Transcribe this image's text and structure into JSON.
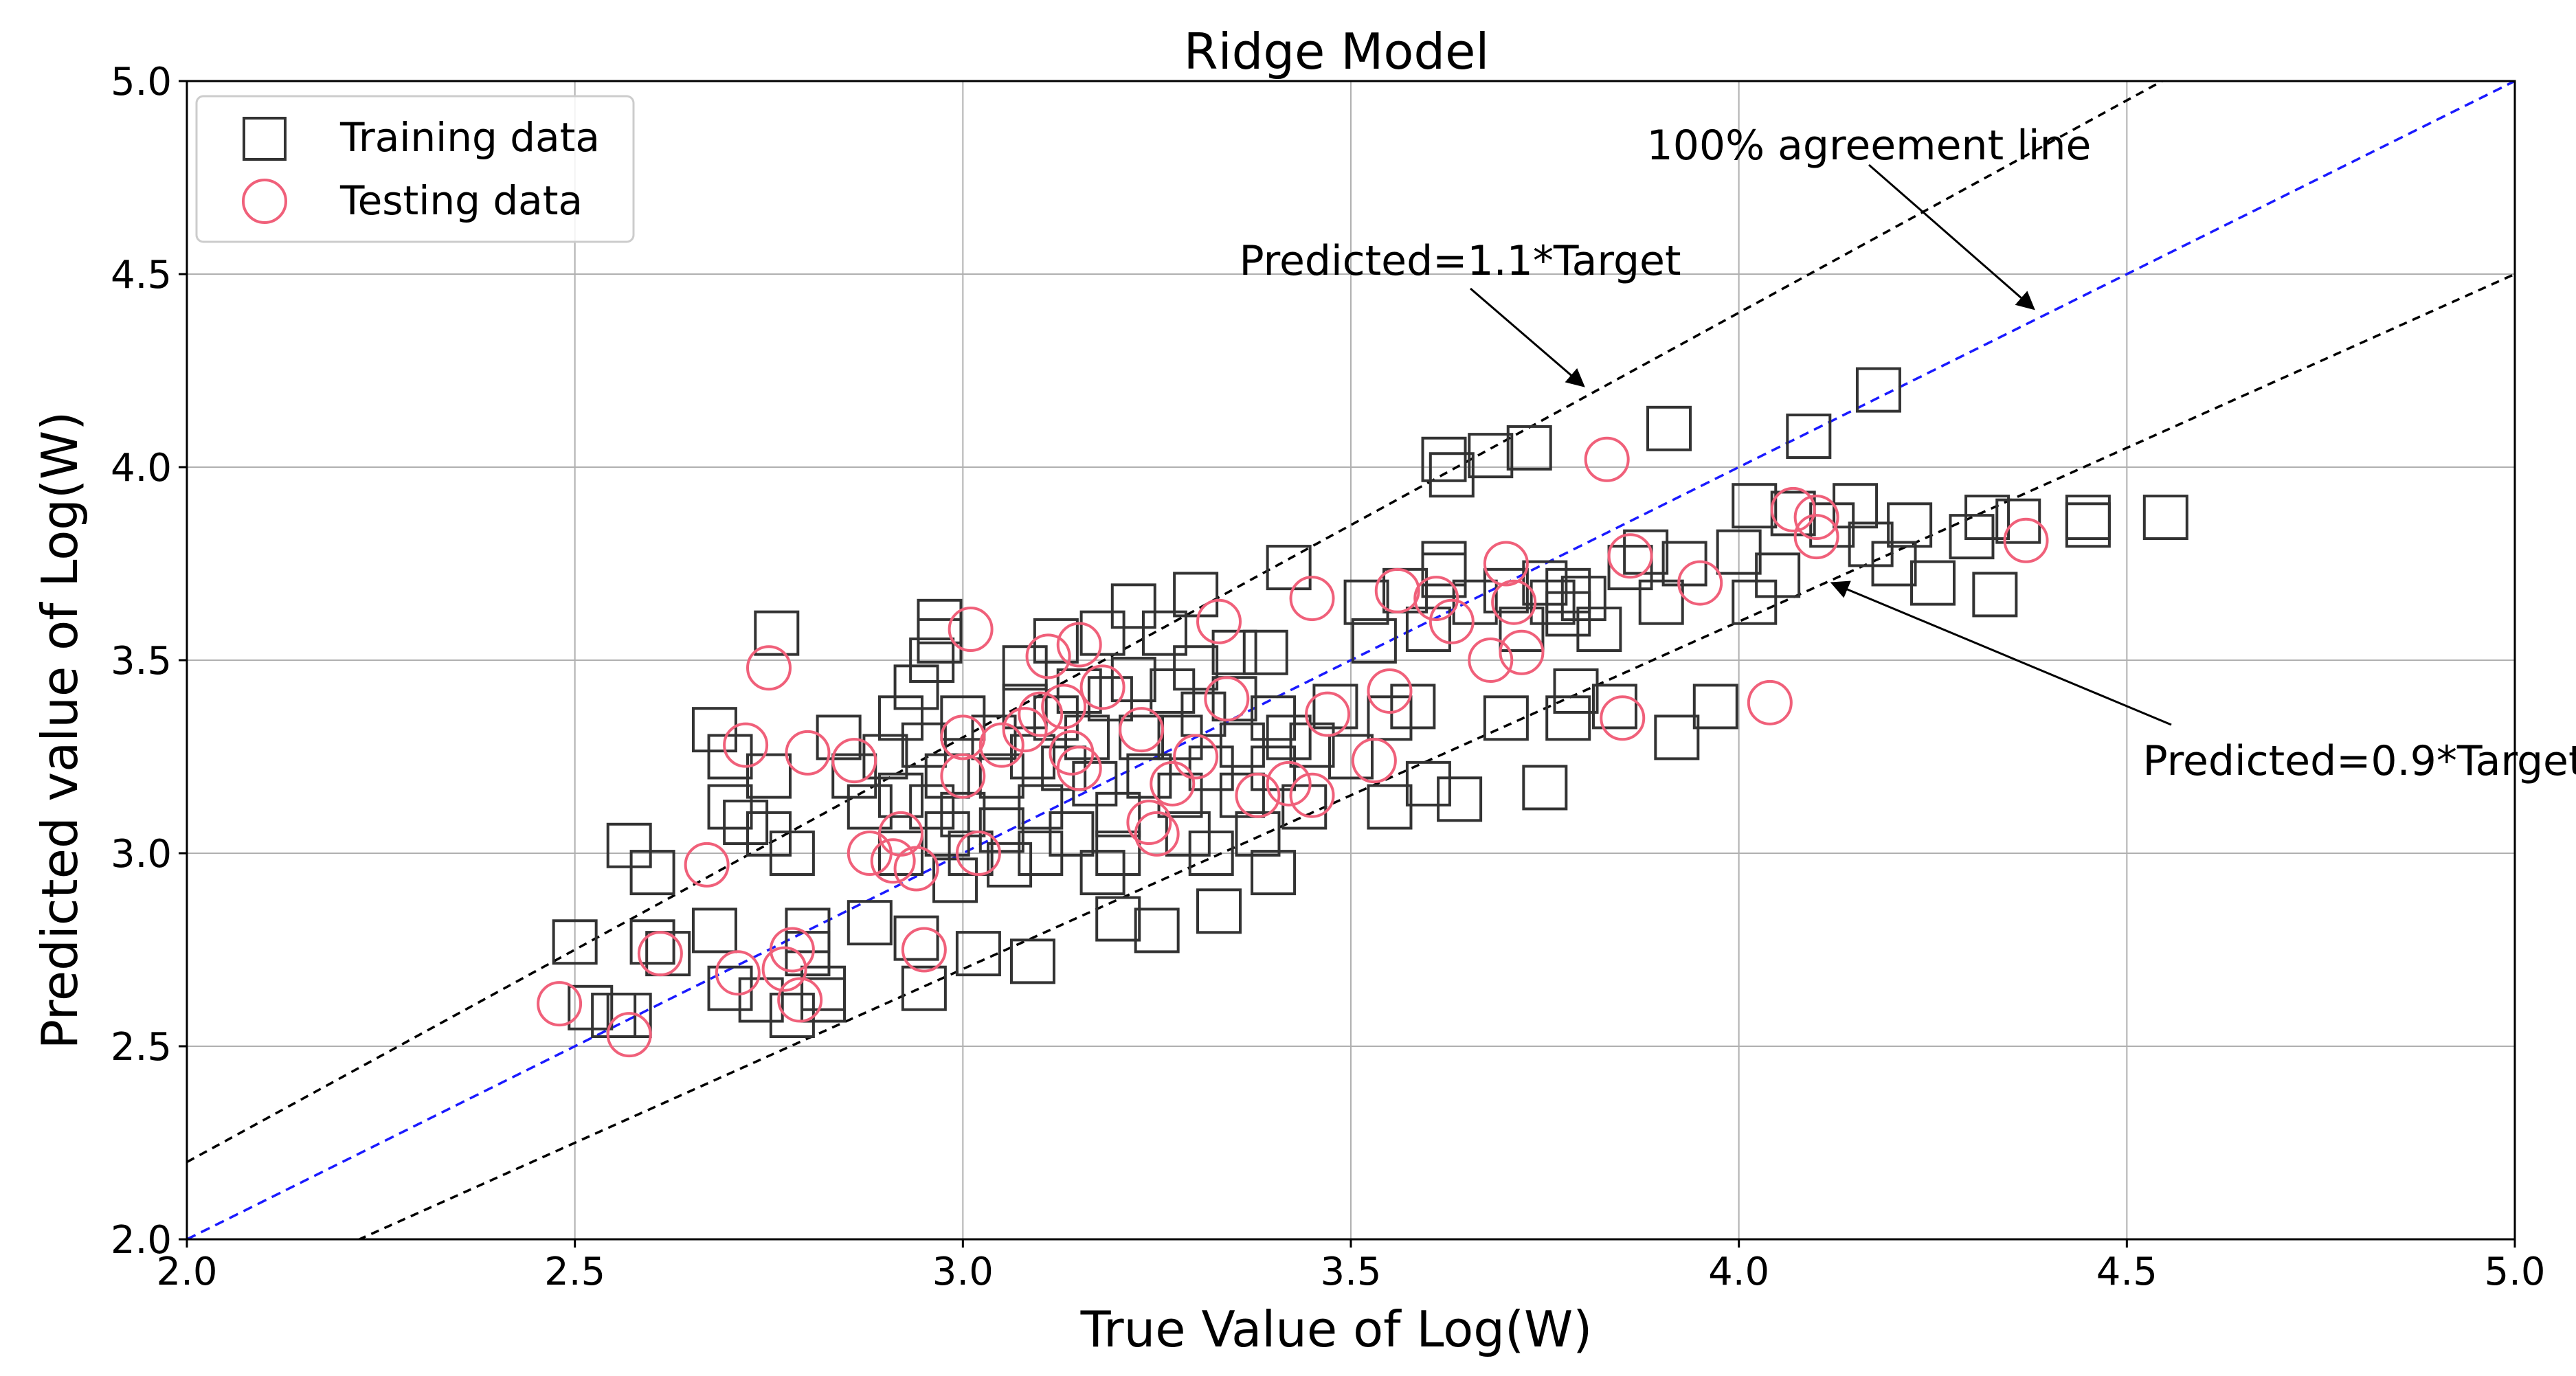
{
  "chart_data": {
    "type": "scatter",
    "title": "Ridge Model",
    "xlabel": "True Value of Log(W)",
    "ylabel": "Predicted value of Log(W)",
    "xlim": [
      2.0,
      5.0
    ],
    "ylim": [
      2.0,
      5.0
    ],
    "xticks": [
      "2.0",
      "2.5",
      "3.0",
      "3.5",
      "4.0",
      "4.5",
      "5.0"
    ],
    "yticks": [
      "2.0",
      "2.5",
      "3.0",
      "3.5",
      "4.0",
      "4.5",
      "5.0"
    ],
    "grid": true,
    "legend": {
      "position": "top-left",
      "entries": [
        "Training data",
        "Testing data"
      ]
    },
    "colors": {
      "training": "#333333",
      "testing": "#f0607a",
      "agreement_line": "#1a1aff",
      "bound_lines": "#000000"
    },
    "reference_lines": [
      {
        "name": "100% agreement line",
        "slope": 1.0,
        "style": "dashed",
        "color": "#1a1aff"
      },
      {
        "name": "Predicted=1.1*Target",
        "slope": 1.1,
        "style": "dashed",
        "color": "#000000"
      },
      {
        "name": "Predicted=0.9*Target",
        "slope": 0.9,
        "style": "dashed",
        "color": "#000000"
      }
    ],
    "annotations": [
      {
        "text": "100% agreement line",
        "points_to": [
          4.38,
          4.41
        ]
      },
      {
        "text": "Predicted=1.1*Target",
        "points_to": [
          3.8,
          4.21
        ]
      },
      {
        "text": "Predicted=0.9*Target",
        "points_to": [
          4.12,
          3.7
        ]
      }
    ],
    "series": [
      {
        "name": "Training data",
        "marker": "square",
        "points": [
          [
            2.5,
            2.77
          ],
          [
            2.52,
            2.6
          ],
          [
            2.55,
            2.58
          ],
          [
            2.57,
            3.02
          ],
          [
            2.6,
            2.95
          ],
          [
            2.6,
            2.77
          ],
          [
            2.62,
            2.74
          ],
          [
            2.57,
            2.58
          ],
          [
            2.68,
            3.32
          ],
          [
            2.7,
            3.25
          ],
          [
            2.7,
            3.12
          ],
          [
            2.72,
            3.08
          ],
          [
            2.68,
            2.8
          ],
          [
            2.7,
            2.65
          ],
          [
            2.74,
            2.62
          ],
          [
            2.78,
            2.58
          ],
          [
            2.76,
            3.57
          ],
          [
            2.75,
            3.2
          ],
          [
            2.75,
            3.05
          ],
          [
            2.78,
            3.0
          ],
          [
            2.8,
            2.74
          ],
          [
            2.8,
            2.8
          ],
          [
            2.82,
            2.62
          ],
          [
            2.82,
            2.65
          ],
          [
            2.84,
            3.3
          ],
          [
            2.86,
            3.2
          ],
          [
            2.88,
            3.12
          ],
          [
            2.88,
            2.82
          ],
          [
            2.9,
            3.25
          ],
          [
            2.92,
            3.35
          ],
          [
            2.92,
            3.15
          ],
          [
            2.92,
            3.0
          ],
          [
            2.94,
            2.78
          ],
          [
            2.95,
            2.65
          ],
          [
            2.94,
            3.43
          ],
          [
            2.97,
            3.6
          ],
          [
            2.97,
            3.55
          ],
          [
            2.96,
            3.5
          ],
          [
            2.95,
            3.28
          ],
          [
            2.96,
            3.12
          ],
          [
            2.98,
            3.2
          ],
          [
            2.98,
            3.05
          ],
          [
            2.99,
            2.93
          ],
          [
            3.0,
            3.35
          ],
          [
            3.0,
            3.1
          ],
          [
            3.01,
            3.0
          ],
          [
            3.02,
            2.74
          ],
          [
            3.04,
            3.3
          ],
          [
            3.05,
            3.2
          ],
          [
            3.05,
            3.06
          ],
          [
            3.06,
            2.97
          ],
          [
            3.08,
            3.48
          ],
          [
            3.08,
            3.38
          ],
          [
            3.09,
            3.25
          ],
          [
            3.1,
            3.12
          ],
          [
            3.1,
            3.0
          ],
          [
            3.09,
            2.72
          ],
          [
            3.12,
            3.55
          ],
          [
            3.12,
            3.35
          ],
          [
            3.13,
            3.22
          ],
          [
            3.14,
            3.05
          ],
          [
            3.15,
            3.42
          ],
          [
            3.16,
            3.3
          ],
          [
            3.17,
            3.18
          ],
          [
            3.18,
            2.95
          ],
          [
            3.18,
            3.57
          ],
          [
            3.19,
            3.4
          ],
          [
            3.2,
            3.1
          ],
          [
            3.2,
            3.0
          ],
          [
            3.22,
            3.64
          ],
          [
            3.22,
            3.45
          ],
          [
            3.23,
            3.3
          ],
          [
            3.24,
            3.2
          ],
          [
            3.2,
            2.83
          ],
          [
            3.25,
            2.8
          ],
          [
            3.26,
            3.57
          ],
          [
            3.27,
            3.42
          ],
          [
            3.28,
            3.3
          ],
          [
            3.28,
            3.15
          ],
          [
            3.29,
            3.05
          ],
          [
            3.3,
            3.67
          ],
          [
            3.3,
            3.48
          ],
          [
            3.31,
            3.36
          ],
          [
            3.32,
            3.22
          ],
          [
            3.32,
            3.0
          ],
          [
            3.33,
            2.85
          ],
          [
            3.35,
            3.52
          ],
          [
            3.35,
            3.4
          ],
          [
            3.36,
            3.28
          ],
          [
            3.36,
            3.15
          ],
          [
            3.38,
            3.05
          ],
          [
            3.39,
            3.52
          ],
          [
            3.4,
            3.35
          ],
          [
            3.4,
            3.22
          ],
          [
            3.4,
            2.95
          ],
          [
            3.42,
            3.74
          ],
          [
            3.42,
            3.3
          ],
          [
            3.44,
            3.12
          ],
          [
            3.45,
            3.28
          ],
          [
            3.48,
            3.38
          ],
          [
            3.5,
            3.25
          ],
          [
            3.52,
            3.65
          ],
          [
            3.53,
            3.55
          ],
          [
            3.55,
            3.35
          ],
          [
            3.55,
            3.12
          ],
          [
            3.57,
            3.68
          ],
          [
            3.58,
            3.38
          ],
          [
            3.6,
            3.58
          ],
          [
            3.6,
            3.18
          ],
          [
            3.62,
            3.75
          ],
          [
            3.62,
            3.72
          ],
          [
            3.62,
            4.02
          ],
          [
            3.63,
            3.98
          ],
          [
            3.64,
            3.14
          ],
          [
            3.66,
            3.65
          ],
          [
            3.68,
            4.03
          ],
          [
            3.7,
            3.68
          ],
          [
            3.7,
            3.35
          ],
          [
            3.72,
            3.58
          ],
          [
            3.73,
            4.05
          ],
          [
            3.75,
            3.7
          ],
          [
            3.76,
            3.65
          ],
          [
            3.78,
            3.68
          ],
          [
            3.78,
            3.62
          ],
          [
            3.8,
            3.66
          ],
          [
            3.79,
            3.42
          ],
          [
            3.78,
            3.35
          ],
          [
            3.75,
            3.17
          ],
          [
            3.82,
            3.58
          ],
          [
            3.84,
            3.38
          ],
          [
            3.86,
            3.74
          ],
          [
            3.88,
            3.78
          ],
          [
            3.9,
            3.65
          ],
          [
            3.91,
            4.1
          ],
          [
            3.92,
            3.3
          ],
          [
            3.93,
            3.75
          ],
          [
            3.97,
            3.38
          ],
          [
            4.0,
            3.78
          ],
          [
            4.02,
            3.65
          ],
          [
            4.02,
            3.9
          ],
          [
            4.05,
            3.72
          ],
          [
            4.07,
            3.88
          ],
          [
            4.09,
            4.08
          ],
          [
            4.12,
            3.85
          ],
          [
            4.15,
            3.9
          ],
          [
            4.17,
            3.8
          ],
          [
            4.18,
            4.2
          ],
          [
            4.2,
            3.75
          ],
          [
            4.22,
            3.85
          ],
          [
            4.25,
            3.7
          ],
          [
            4.3,
            3.82
          ],
          [
            4.32,
            3.87
          ],
          [
            4.33,
            3.67
          ],
          [
            4.36,
            3.86
          ],
          [
            4.45,
            3.85
          ],
          [
            4.45,
            3.87
          ],
          [
            4.55,
            3.87
          ]
        ]
      },
      {
        "name": "Testing data",
        "marker": "circle",
        "points": [
          [
            2.48,
            2.61
          ],
          [
            2.57,
            2.53
          ],
          [
            2.61,
            2.74
          ],
          [
            2.67,
            2.97
          ],
          [
            2.71,
            2.69
          ],
          [
            2.72,
            3.28
          ],
          [
            2.75,
            3.48
          ],
          [
            2.77,
            2.7
          ],
          [
            2.78,
            2.75
          ],
          [
            2.79,
            2.62
          ],
          [
            2.8,
            3.26
          ],
          [
            2.86,
            3.24
          ],
          [
            2.88,
            3.0
          ],
          [
            2.91,
            2.98
          ],
          [
            2.92,
            3.05
          ],
          [
            2.94,
            2.96
          ],
          [
            2.95,
            2.75
          ],
          [
            3.0,
            3.3
          ],
          [
            3.0,
            3.2
          ],
          [
            3.01,
            3.58
          ],
          [
            3.02,
            3.0
          ],
          [
            3.05,
            3.28
          ],
          [
            3.08,
            3.32
          ],
          [
            3.1,
            3.36
          ],
          [
            3.11,
            3.51
          ],
          [
            3.13,
            3.38
          ],
          [
            3.14,
            3.26
          ],
          [
            3.15,
            3.22
          ],
          [
            3.15,
            3.54
          ],
          [
            3.18,
            3.43
          ],
          [
            3.23,
            3.32
          ],
          [
            3.24,
            3.08
          ],
          [
            3.25,
            3.05
          ],
          [
            3.27,
            3.18
          ],
          [
            3.3,
            3.25
          ],
          [
            3.33,
            3.6
          ],
          [
            3.34,
            3.4
          ],
          [
            3.38,
            3.15
          ],
          [
            3.42,
            3.18
          ],
          [
            3.45,
            3.66
          ],
          [
            3.45,
            3.15
          ],
          [
            3.47,
            3.36
          ],
          [
            3.53,
            3.24
          ],
          [
            3.55,
            3.42
          ],
          [
            3.56,
            3.68
          ],
          [
            3.61,
            3.66
          ],
          [
            3.63,
            3.6
          ],
          [
            3.68,
            3.5
          ],
          [
            3.7,
            3.75
          ],
          [
            3.71,
            3.65
          ],
          [
            3.72,
            3.52
          ],
          [
            3.83,
            4.02
          ],
          [
            3.85,
            3.35
          ],
          [
            3.86,
            3.77
          ],
          [
            3.95,
            3.7
          ],
          [
            4.04,
            3.39
          ],
          [
            4.07,
            3.89
          ],
          [
            4.1,
            3.87
          ],
          [
            4.1,
            3.82
          ],
          [
            4.37,
            3.81
          ]
        ]
      }
    ]
  }
}
